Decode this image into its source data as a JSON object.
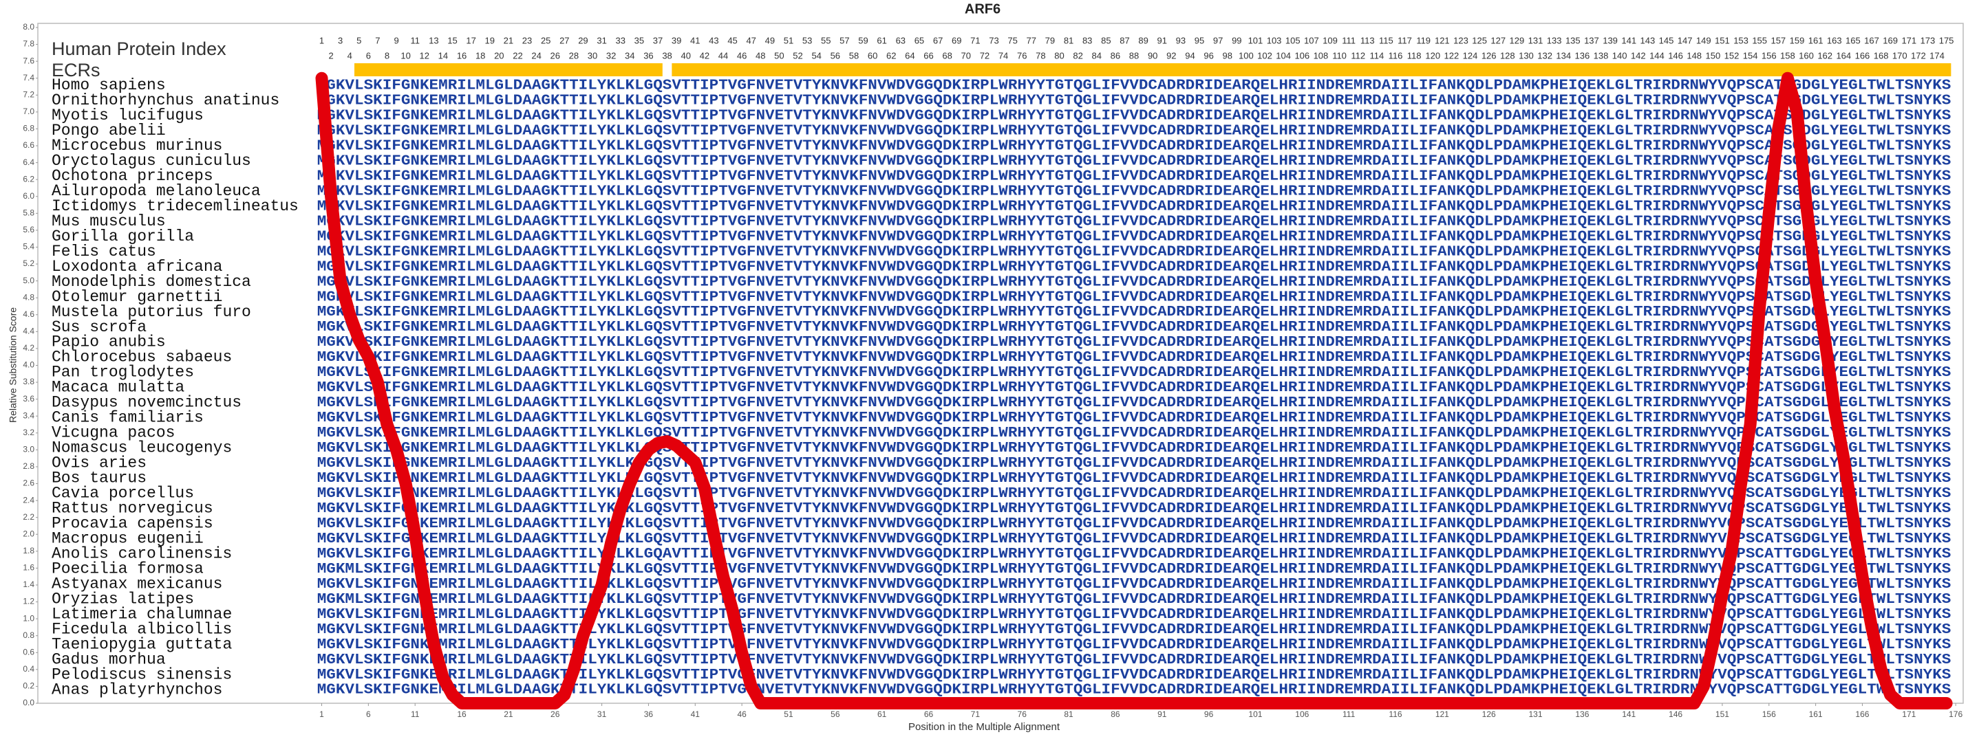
{
  "chart_data": {
    "type": "line",
    "title": "ARF6",
    "xlabel": "Position in the Multiple Alignment",
    "ylabel": "Relative Substitution Score",
    "color": "#e3000b",
    "xlim": [
      -29.4,
      176.8
    ],
    "ylim": [
      0,
      8
    ],
    "xticks": [
      1,
      6,
      11,
      16,
      21,
      26,
      31,
      36,
      41,
      46,
      51,
      56,
      61,
      66,
      71,
      76,
      81,
      86,
      91,
      96,
      101,
      106,
      111,
      116,
      121,
      126,
      131,
      136,
      141,
      146,
      151,
      156,
      161,
      166,
      171,
      176
    ],
    "yticks": [
      {
        "value": 0,
        "label": "0.0"
      },
      0.2,
      0.4,
      0.6,
      0.8,
      {
        "value": 1,
        "label": "1.0"
      },
      1.2,
      1.4,
      1.6,
      1.8,
      {
        "value": 2,
        "label": "2.0"
      },
      2.2,
      2.4,
      2.6,
      2.8,
      {
        "value": 3,
        "label": "3.0"
      },
      3.2,
      3.4,
      3.6,
      3.8,
      {
        "value": 4,
        "label": "4.0"
      },
      4.2,
      4.4,
      4.6,
      4.8,
      {
        "value": 5,
        "label": "5.0"
      },
      5.2,
      5.4,
      5.6,
      5.8,
      {
        "value": 6,
        "label": "6.0"
      },
      6.2,
      6.4,
      6.6,
      6.8,
      {
        "value": 7,
        "label": "7.0"
      },
      7.2,
      7.4,
      7.6,
      7.8,
      {
        "value": 8,
        "label": "8.0"
      }
    ],
    "x": [
      1,
      2,
      3,
      4,
      5,
      6,
      7,
      8,
      9,
      10,
      11,
      12,
      13,
      14,
      15,
      16,
      17,
      18,
      19,
      20,
      21,
      22,
      23,
      24,
      25,
      26,
      27,
      28,
      29,
      30,
      31,
      32,
      33,
      34,
      35,
      36,
      37,
      38,
      39,
      40,
      41,
      42,
      43,
      44,
      45,
      46,
      47,
      48,
      49,
      50,
      51,
      52,
      53,
      54,
      55,
      56,
      57,
      58,
      59,
      60,
      61,
      62,
      63,
      64,
      65,
      66,
      67,
      68,
      69,
      70,
      71,
      72,
      73,
      74,
      75,
      76,
      77,
      78,
      79,
      80,
      81,
      82,
      83,
      84,
      85,
      86,
      87,
      88,
      89,
      90,
      91,
      92,
      93,
      94,
      95,
      96,
      97,
      98,
      99,
      100,
      101,
      102,
      103,
      104,
      105,
      106,
      107,
      108,
      109,
      110,
      111,
      112,
      113,
      114,
      115,
      116,
      117,
      118,
      119,
      120,
      121,
      122,
      123,
      124,
      125,
      126,
      127,
      128,
      129,
      130,
      131,
      132,
      133,
      134,
      135,
      136,
      137,
      138,
      139,
      140,
      141,
      142,
      143,
      144,
      145,
      146,
      147,
      148,
      149,
      150,
      151,
      152,
      153,
      154,
      155,
      156,
      157,
      158,
      159,
      160,
      161,
      162,
      163,
      164,
      165,
      166,
      167,
      168,
      169,
      170,
      171,
      172,
      173,
      174,
      175
    ],
    "values": [
      7.4,
      6.0,
      5.0,
      4.6,
      4.3,
      4.1,
      3.8,
      3.3,
      3.0,
      2.6,
      2.0,
      1.3,
      0.7,
      0.3,
      0.1,
      0,
      0,
      0,
      0,
      0,
      0,
      0,
      0,
      0,
      0,
      0,
      0.1,
      0.4,
      0.8,
      1.1,
      1.4,
      1.9,
      2.3,
      2.6,
      2.85,
      3.0,
      3.08,
      3.1,
      3.05,
      2.95,
      2.85,
      2.55,
      2.0,
      1.5,
      1.1,
      0.6,
      0.2,
      0,
      0,
      0,
      0,
      0,
      0,
      0,
      0,
      0,
      0,
      0,
      0,
      0,
      0,
      0,
      0,
      0,
      0,
      0,
      0,
      0,
      0,
      0,
      0,
      0,
      0,
      0,
      0,
      0,
      0,
      0,
      0,
      0,
      0,
      0,
      0,
      0,
      0,
      0,
      0,
      0,
      0,
      0,
      0,
      0,
      0,
      0,
      0,
      0,
      0,
      0,
      0,
      0,
      0,
      0,
      0,
      0,
      0,
      0,
      0,
      0,
      0,
      0,
      0,
      0,
      0,
      0,
      0,
      0,
      0,
      0,
      0,
      0,
      0,
      0,
      0,
      0,
      0,
      0,
      0,
      0,
      0,
      0,
      0,
      0,
      0,
      0,
      0,
      0,
      0,
      0,
      0,
      0,
      0,
      0,
      0,
      0,
      0,
      0,
      0,
      0,
      0.2,
      0.7,
      1.3,
      1.8,
      2.6,
      3.3,
      4.7,
      5.8,
      6.8,
      7.4,
      7.0,
      5.9,
      5.0,
      4.3,
      3.5,
      2.9,
      2.2,
      1.5,
      0.9,
      0.4,
      0.1,
      0,
      0,
      0,
      0,
      0,
      0
    ]
  },
  "alignment": {
    "index_label": "Human Protein Index",
    "ecr_label": "ECRs",
    "ecr_color": "#ffc000",
    "protein_index": [
      1,
      2,
      3,
      4,
      5,
      6,
      7,
      8,
      9,
      10,
      11,
      12,
      13,
      14,
      15,
      16,
      17,
      18,
      19,
      20,
      21,
      22,
      23,
      24,
      25,
      26,
      27,
      28,
      29,
      30,
      31,
      32,
      33,
      34,
      35,
      36,
      37,
      38,
      39,
      40,
      41,
      42,
      43,
      44,
      45,
      46,
      47,
      48,
      49,
      50,
      51,
      52,
      53,
      54,
      55,
      56,
      57,
      58,
      59,
      60,
      61,
      62,
      63,
      64,
      65,
      66,
      67,
      68,
      69,
      70,
      71,
      72,
      73,
      74,
      75,
      76,
      77,
      78,
      79,
      80,
      81,
      82,
      83,
      84,
      85,
      86,
      87,
      88,
      89,
      90,
      91,
      92,
      93,
      94,
      95,
      96,
      97,
      98,
      99,
      100,
      101,
      102,
      103,
      104,
      105,
      106,
      107,
      108,
      109,
      110,
      111,
      112,
      113,
      114,
      115,
      116,
      117,
      118,
      119,
      120,
      121,
      122,
      123,
      124,
      125,
      126,
      127,
      128,
      129,
      130,
      131,
      132,
      133,
      134,
      135,
      136,
      137,
      138,
      139,
      140,
      141,
      142,
      143,
      144,
      145,
      146,
      147,
      148,
      149,
      150,
      151,
      152,
      153,
      154,
      155,
      156,
      157,
      158,
      159,
      160,
      161,
      162,
      163,
      164,
      165,
      166,
      167,
      168,
      169,
      170,
      171,
      172,
      173,
      174,
      175
    ],
    "ecrs": [
      {
        "start": 5,
        "end": 37
      },
      {
        "start": 39,
        "end": 175
      }
    ],
    "rows": [
      {
        "species": "Homo sapiens",
        "sequence": "MGKVLSKIFGNKEMRILMLGLDAAGKTTILYKLKLGQSVTTIPTVGFNVETVTYKNVKFNVWDVGGQDKIRPLWRHYYTGTQGLIFVVDCADRDRIDEARQELHRIINDREMRDAIILIFANKQDLPDAMKPHEIQEKLGLTRIRDRNWYVQPSCATSGDGLYEGLTWLTSNYKS"
      },
      {
        "species": "Ornithorhynchus anatinus",
        "sequence": "MGKVLSKIFGNKEMRILMLGLDAAGKTTILYKLKLGQSVTTIPTVGFNVETVTYKNVKFNVWDVGGQDKIRPLWRHYYTGTQGLIFVVDCADRDRIDEARQELHRIINDREMRDAIILIFANKQDLPDAMKPHEIQEKLGLTRIRDRNWYVQPSCATSGDGLYEGLTWLTSNYKS"
      },
      {
        "species": "Myotis lucifugus",
        "sequence": "MGKVLSKIFGNKEMRILMLGLDAAGKTTILYKLKLGQSVTTIPTVGFNVETVTYKNVKFNVWDVGGQDKIRPLWRHYYTGTQGLIFVVDCADRDRIDEARQELHRIINDREMRDAIILIFANKQDLPDAMKPHEIQEKLGLTRIRDRNWYVQPSCATSGDGLYEGLTWLTSNYKS"
      },
      {
        "species": "Pongo abelii",
        "sequence": "MGKVLSKIFGNKEMRILMLGLDAAGKTTILYKLKLGQSVTTIPTVGFNVETVTYKNVKFNVWDVGGQDKIRPLWRHYYTGTQGLIFVVDCADRDRIDEARQELHRIINDREMRDAIILIFANKQDLPDAMKPHEIQEKLGLTRIRDRNWYVQPSCATSGDGLYEGLTWLTSNYKS"
      },
      {
        "species": "Microcebus murinus",
        "sequence": "MGKVLSKIFGNKEMRILMLGLDAAGKTTILYKLKLGQSVTTIPTVGFNVETVTYKNVKFNVWDVGGQDKIRPLWRHYYTGTQGLIFVVDCADRDRIDEARQELHRIINDREMRDAIILIFANKQDLPDAMKPHEIQEKLGLTRIRDRNWYVQPSCATSGDGLYEGLTWLTSNYKS"
      },
      {
        "species": "Oryctolagus cuniculus",
        "sequence": "MGKVLSKIFGNKEMRILMLGLDAAGKTTILYKLKLGQSVTTIPTVGFNVETVTYKNVKFNVWDVGGQDKIRPLWRHYYTGTQGLIFVVDCADRDRIDEARQELHRIINDREMRDAIILIFANKQDLPDAMKPHEIQEKLGLTRIRDRNWYVQPSCATSGDGLYEGLTWLTSNYKS"
      },
      {
        "species": "Ochotona princeps",
        "sequence": "MGKVLSKIFGNKEMRILMLGLDAAGKTTILYKLKLGQSVTTIPTVGFNVETVTYKNVKFNVWDVGGQDKIRPLWRHYYTGTQGLIFVVDCADRDRIDEARQELHRIINDREMRDAIILIFANKQDLPDAMKPHEIQEKLGLTRIRDRNWYVQPSCATSGDGLYEGLTWLTSNYKS"
      },
      {
        "species": "Ailuropoda melanoleuca",
        "sequence": "MGKVLSKIFGNKEMRILMLGLDAAGKTTILYKLKLGQSVTTIPTVGFNVETVTYKNVKFNVWDVGGQDKIRPLWRHYYTGTQGLIFVVDCADRDRIDEARQELHRIINDREMRDAIILIFANKQDLPDAMKPHEIQEKLGLTRIRDRNWYVQPSCATSGDGLYEGLTWLTSNYKS"
      },
      {
        "species": "Ictidomys tridecemlineatus",
        "sequence": "MGKVLSKIFGNKEMRILMLGLDAAGKTTILYKLKLGQSVTTIPTVGFNVETVTYKNVKFNVWDVGGQDKIRPLWRHYYTGTQGLIFVVDCADRDRIDEARQELHRIINDREMRDAIILIFANKQDLPDAMKPHEIQEKLGLTRIRDRNWYVQPSCATSGDGLYEGLTWLTSNYKS"
      },
      {
        "species": "Mus musculus",
        "sequence": "MGKVLSKIFGNKEMRILMLGLDAAGKTTILYKLKLGQSVTTIPTVGFNVETVTYKNVKFNVWDVGGQDKIRPLWRHYYTGTQGLIFVVDCADRDRIDEARQELHRIINDREMRDAIILIFANKQDLPDAMKPHEIQEKLGLTRIRDRNWYVQPSCATSGDGLYEGLTWLTSNYKS"
      },
      {
        "species": "Gorilla gorilla",
        "sequence": "MGKVLSKIFGNKEMRILMLGLDAAGKTTILYKLKLGQSVTTIPTVGFNVETVTYKNVKFNVWDVGGQDKIRPLWRHYYTGTQGLIFVVDCADRDRIDEARQELHRIINDREMRDAIILIFANKQDLPDAMKPHEIQEKLGLTRIRDRNWYVQPSCATSGDGLYEGLTWLTSNYKS"
      },
      {
        "species": "Felis catus",
        "sequence": "MGKVLSKIFGNKEMRILMLGLDAAGKTTILYKLKLGQSVTTIPTVGFNVETVTYKNVKFNVWDVGGQDKIRPLWRHYYTGTQGLIFVVDCADRDRIDEARQELHRIINDREMRDAIILIFANKQDLPDAMKPHEIQEKLGLTRIRDRNWYVQPSCATSGDGLYEGLTWLTSNYKS"
      },
      {
        "species": "Loxodonta africana",
        "sequence": "MGKVLSKIFGNKEMRILMLGLDAAGKTTILYKLKLGQSVTTIPTVGFNVETVTYKNVKFNVWDVGGQDKIRPLWRHYYTGTQGLIFVVDCADRDRIDEARQELHRIINDREMRDAIILIFANKQDLPDAMKPHEIQEKLGLTRIRDRNWYVQPSCATSGDGLYEGLTWLTSNYKS"
      },
      {
        "species": "Monodelphis domestica",
        "sequence": "MGKVLSKIFGNKEMRILMLGLDAAGKTTILYKLKLGQSVTTIPTVGFNVETVTYKNVKFNVWDVGGQDKIRPLWRHYYTGTQGLIFVVDCADRDRIDEARQELHRIINDREMRDAIILIFANKQDLPDAMKPHEIQEKLGLTRIRDRNWYVQPSCATSGDGLYEGLTWLTSNYKS"
      },
      {
        "species": "Otolemur garnettii",
        "sequence": "MGKVLSKIFGNKEMRILMLGLDAAGKTTILYKLKLGQSVTTIPTVGFNVETVTYKNVKFNVWDVGGQDKIRPLWRHYYTGTQGLIFVVDCADRDRIDEARQELHRIINDREMRDAIILIFANKQDLPDAMKPHEIQEKLGLTRIRDRNWYVQPSCATSGDGLYEGLTWLTSNYKS"
      },
      {
        "species": "Mustela putorius furo",
        "sequence": "MGKVLSKIFGNKEMRILMLGLDAAGKTTILYKLKLGQSVTTIPTVGFNVETVTYKNVKFNVWDVGGQDKIRPLWRHYYTGTQGLIFVVDCADRDRIDEARQELHRIINDREMRDAIILIFANKQDLPDAMKPHEIQEKLGLTRIRDRNWYVQPSCATSGDGLYEGLTWLTSNYKS"
      },
      {
        "species": "Sus scrofa",
        "sequence": "MGKVLSKIFGNKEMRILMLGLDAAGKTTILYKLKLGQSVTTIPTVGFNVETVTYKNVKFNVWDVGGQDKIRPLWRHYYTGTQGLIFVVDCADRDRIDEARQELHRIINDREMRDAIILIFANKQDLPDAMKPHEIQEKLGLTRIRDRNWYVQPSCATSGDGLYEGLTWLTSNYKS"
      },
      {
        "species": "Papio anubis",
        "sequence": "MGKVLSKIFGNKEMRILMLGLDAAGKTTILYKLKLGQSVTTIPTVGFNVETVTYKNVKFNVWDVGGQDKIRPLWRHYYTGTQGLIFVVDCADRDRIDEARQELHRIINDREMRDAIILIFANKQDLPDAMKPHEIQEKLGLTRIRDRNWYVQPSCATSGDGLYEGLTWLTSNYKS"
      },
      {
        "species": "Chlorocebus sabaeus",
        "sequence": "MGKVLSKIFGNKEMRILMLGLDAAGKTTILYKLKLGQSVTTIPTVGFNVETVTYKNVKFNVWDVGGQDKIRPLWRHYYTGTQGLIFVVDCADRDRIDEARQELHRIINDREMRDAIILIFANKQDLPDAMKPHEIQEKLGLTRIRDRNWYVQPSCATSGDGLYEGLTWLTSNYKS"
      },
      {
        "species": "Pan troglodytes",
        "sequence": "MGKVLSKIFGNKEMRILMLGLDAAGKTTILYKLKLGQSVTTIPTVGFNVETVTYKNVKFNVWDVGGQDKIRPLWRHYYTGTQGLIFVVDCADRDRIDEARQELHRIINDREMRDAIILIFANKQDLPDAMKPHEIQEKLGLTRIRDRNWYVQPSCATSGDGLYEGLTWLTSNYKS"
      },
      {
        "species": "Macaca mulatta",
        "sequence": "MGKVLSKIFGNKEMRILMLGLDAAGKTTILYKLKLGQSVTTIPTVGFNVETVTYKNVKFNVWDVGGQDKIRPLWRHYYTGTQGLIFVVDCADRDRIDEARQELHRIINDREMRDAIILIFANKQDLPDAMKPHEIQEKLGLTRIRDRNWYVQPSCATSGDGLYEGLTWLTSNYKS"
      },
      {
        "species": "Dasypus novemcinctus",
        "sequence": "MGKVLSKIFGNKEMRILMLGLDAAGKTTILYKLKLGQSVTTIPTVGFNVETVTYKNVKFNVWDVGGQDKIRPLWRHYYTGTQGLIFVVDCADRDRIDEARQELHRIINDREMRDAIILIFANKQDLPDAMKPHEIQEKLGLTRIRDRNWYVQPSCATSGDGLYEGLTWLTSNYKS"
      },
      {
        "species": "Canis familiaris",
        "sequence": "MGKVLSKIFGNKEMRILMLGLDAAGKTTILYKLKLGQSVTTIPTVGFNVETVTYKNVKFNVWDVGGQDKIRPLWRHYYTGTQGLIFVVDCADRDRIDEARQELHRIINDREMRDAIILIFANKQDLPDAMKPHEIQEKLGLTRIRDRNWYVQPSCATSGDGLYEGLTWLTSNYKS"
      },
      {
        "species": "Vicugna pacos",
        "sequence": "MGKVLSKIFGNKEMRILMLGLDAAGKTTILYKLKLGQSVTTIPTVGFNVETVTYKNVKFNVWDVGGQDKIRPLWRHYYTGTQGLIFVVDCADRDRIDEARQELHRIINDREMRDAIILIFANKQDLPDAMKPHEIQEKLGLTRIRDRNWYVQPSCATSGDGLYEGLTWLTSNYKS"
      },
      {
        "species": "Nomascus leucogenys",
        "sequence": "MGKVLSKIFGNKEMRILMLGLDAAGKTTILYKLKLGQSVTTIPTVGFNVETVTYKNVKFNVWDVGGQDKIRPLWRHYYTGTQGLIFVVDCADRDRIDEARQELHRIINDREMRDAIILIFANKQDLPDAMKPHEIQEKLGLTRIRDRNWYVQPSCATSGDGLYEGLTWLTSNYKS"
      },
      {
        "species": "Ovis aries",
        "sequence": "MGKVLSKIFGNKEMRILMLGLDAAGKTTILYKLKLGQSVTTIPTVGFNVETVTYKNVKFNVWDVGGQDKIRPLWRHYYTGTQGLIFVVDCADRDRIDEARQELHRIINDREMRDAIILIFANKQDLPDAMKPHEIQEKLGLTRIRDRNWYVQPSCATSGDGLYEGLTWLTSNYKS"
      },
      {
        "species": "Bos taurus",
        "sequence": "MGKVLSKIFGNKEMRILMLGLDAAGKTTILYKLKLGQSVTTIPTVGFNVETVTYKNVKFNVWDVGGQDKIRPLWRHYYTGTQGLIFVVDCADRDRIDEARQELHRIINDREMRDAIILIFANKQDLPDAMKPHEIQEKLGLTRIRDRNWYVQPSCATSGDGLYEGLTWLTSNYKS"
      },
      {
        "species": "Cavia porcellus",
        "sequence": "MGKVLSKIFGNKEMRILMLGLDAAGKTTILYKLKLGQSVTTIPTVGFNVETVTYKNVKFNVWDVGGQDKIRPLWRHYYTGTQGLIFVVDCADRDRIDEARQELHRIINDREMRDAIILIFANKQDLPDAMKPHEIQEKLGLTRIRDRNWYVQPSCATSGDGLYEGLTWLTSNYKS"
      },
      {
        "species": "Rattus norvegicus",
        "sequence": "MGKVLSKIFGNKEMRILMLGLDAAGKTTILYKLKLGQSVTTIPTVGFNVETVTYKNVKFNVWDVGGQDKIRPLWRHYYTGTQGLIFVVDCADRDRIDEARQELHRIINDREMRDAIILIFANKQDLPDAMKPHEIQEKLGLTRIRDRNWYVQPSCATSGDGLYEGLTWLTSNYKS"
      },
      {
        "species": "Procavia capensis",
        "sequence": "MGKVLSKIFGNKEMRILMLGLDAAGKTTILYKLKLGQSVTTIPTVGFNVETVTYKNVKFNVWDVGGQDKIRPLWRHYYTGTQGLIFVVDCADRDRIDEARQELHRIINDREMRDAIILIFANKQDLPDAMKPHEIQEKLGLTRIRDRNWYVQPSCATSGDGLYEGLTWLTSNYKS"
      },
      {
        "species": "Macropus eugenii",
        "sequence": "MGKVLSKIFGNKEMRILMLGLDAAGKTTILYKLKLGQSVTTIPTVGFNVETVTYKNVKFNVWDVGGQDKIRPLWRHYYTGTQGLIFVVDCADRDRIDEARQELHRIINDREMRDAIILIFANKQDLPDAMKPHEIQEKLGLTRIRDRNWYVQPSCATSGDGLYEGLTWLTSNYKS"
      },
      {
        "species": "Anolis carolinensis",
        "sequence": "MGKVLSKIFGNKEMRILMLGLDAAGKTTILYKLKLGQAVTTIPTVGFNVETVTYKNVKFNVWDVGGQDKIRPLWRHYYTGTQGLIFVVDCADRDRIDEARQELHRIINDREMRDAIILIFANKQDLPDAMKPHEIQEKLGLTRIRDRNWYVQPSCATTGDGLYEGLTWLTSNYKS"
      },
      {
        "species": "Poecilia formosa",
        "sequence": "MGKMLSKIFGNKEMRILMLGLDAAGKTTILYKLKLGQSVTTIPTVGFNVETVTYKNVKFNVWDVGGQDKIRPLWRHYYTGTQGLIFVVDCADRDRIDEARQELHRIINDREMRDAIILIFANKQDLPDAMKPHEIQEKLGLTRIRDRNWYVQPSCATTGDGLYEGLTWLTSNYKS"
      },
      {
        "species": "Astyanax mexicanus",
        "sequence": "MGKVLSKIFGNKEMRILMLGLDAAGKTTILYKLKLGQSVTTIPTVGFNVETVTYKNVKFNVWDVGGQDKIRPLWRHYYTGTQGLIFVVDCADRDRIDEARQELHRIINDREMRDAIILIFANKQDLPDAMKPHEIQEKLGLTRIRDRNWYVQPSCATTGDGLYEGLTWLTSNYKS"
      },
      {
        "species": "Oryzias latipes",
        "sequence": "MGKMLSKIFGNKEMRILMLGLDAAGKTTILYKLKLGQSVTTIPTVGFNVETVTYKNVKFNVWDVGGQDKIRPLWRHYYTGTQGLIFVVDCADRDRIDEARQELHRIINDREMRDAIILIFANKQDLPDAMKPHEIQEKLGLTRIRDRNWYVQPSCATTGDGLYEGLTWLTSNYKS"
      },
      {
        "species": "Latimeria chalumnae",
        "sequence": "MGKVLSKIFGNKEMRILMLGLDAAGKTTILYKLKLGQSVTTIPTVGFNVETVTYKNVKFNVWDVGGQDKIRPLWRHYYTGTQGLIFVVDCADRDRIDEARQELHRIINDREMRDAIILIFANKQDLPDAMKPHEIQEKLGLTRIRDRNWYVQPSCATTGDGLYEGLTWLTSNYKS"
      },
      {
        "species": "Ficedula albicollis",
        "sequence": "MGKVLSKIFGNKEMRILMLGLDAAGKTTILYKLKLGQSVTTIPTVGFNVETVTYKNVKFNVWDVGGQDKIRPLWRHYYTGTQGLIFVVDCADRDRIDEARQELHRIINDREMRDAIILIFANKQDLPDAMKPHEIQEKLGLTRIRDRNWYVQPSCATTGDGLYEGLTWLTSNYKS"
      },
      {
        "species": "Taeniopygia guttata",
        "sequence": "MGKVLSKIFGNKEMRILMLGLDAAGKTTILYKLKLGQSVTTIPTVGFNVETVTYKNVKFNVWDVGGQDKIRPLWRHYYTGTQGLIFVVDCADRDRIDEARQELHRIINDREMRDAIILIFANKQDLPDAMKPHEIQEKLGLTRIRDRNWYVQPSCATTGDGLYEGLTWLTSNYKS"
      },
      {
        "species": "Gadus morhua",
        "sequence": "MGKVLSKIFGNKEMRILMLGLDAAGKTTILYKLKLGQSVTTIPTVGFNVETVTYKNVKFNVWDVGGQDKIRPLWRHYYTGTQGLIFVVDCADRDRIDEARQELHRIINDREMRDAIILIFANKQDLPDAMKPHEIQEKLGLTRIRDRNWYVQPSCATTGDGLYEGLTWLTSNYKS"
      },
      {
        "species": "Pelodiscus sinensis",
        "sequence": "MGKVLSKIFGNKEMRILMLGLDAAGKTTILYKLKLGQSVTTIPTVGFNVETVTYKNVKFNVWDVGGQDKIRPLWRHYYTGTQGLIFVVDCADRDRIDEARQELHRIINDREMRDAIILIFANKQDLPDAMKPHEIQEKLGLTRIRDRNWYVQPSCATTGDGLYEGLTWLTSNYKS"
      },
      {
        "species": "Anas platyrhynchos",
        "sequence": "MGKVLSKIFGNKEMRILMLGLDAAGKTTILYKLKLGQSVTTIPTVGFNVETVTYKNVKFNVWDVGGQDKIRPLWRHYYTGTQGLIFVVDCADRDRIDEARQELHRIINDREMRDAIILIFANKQDLPDAMKPHEIQEKLGLTRIRDRNWYVQPSCATTGDGLYEGLTWLTSNYKS"
      }
    ]
  }
}
